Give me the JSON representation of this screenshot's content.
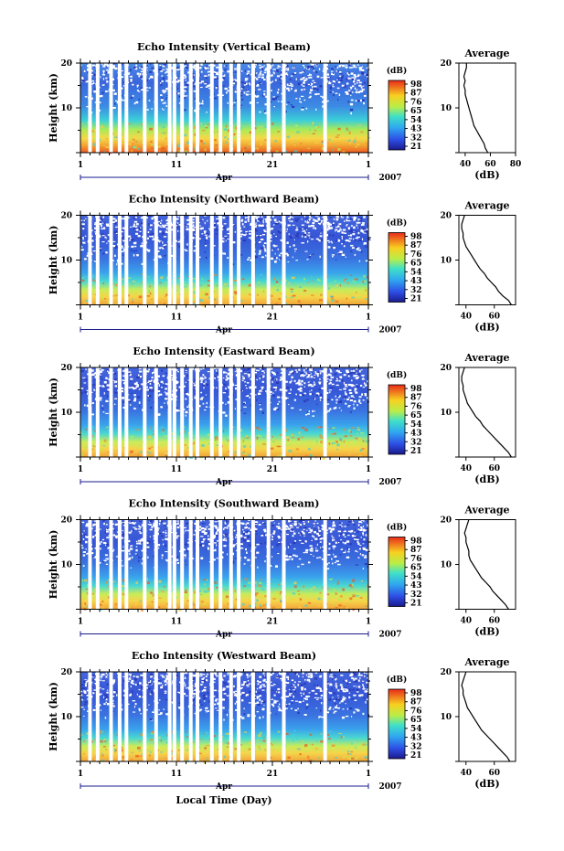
{
  "figure": {
    "xlabel": "Local Time (Day)"
  },
  "chart_data": [
    {
      "type": "heatmap",
      "title": "Echo Intensity (Vertical Beam)",
      "ylabel": "Height (km)",
      "y_ticks": [
        "10",
        "20"
      ],
      "x_ticks": [
        "1",
        "11",
        "21",
        "1"
      ],
      "month_label": "Apr",
      "year_label": "2007",
      "colorbar_unit": "(dB)",
      "colorbar_ticks": [
        "98",
        "87",
        "76",
        "65",
        "54",
        "43",
        "32",
        "21"
      ],
      "ylim": [
        0,
        20
      ],
      "gap_days": [
        1.8,
        2.6,
        4.0,
        4.9,
        5.6,
        7.5,
        8.7,
        10.1,
        10.6,
        11.4,
        12.3,
        13.0,
        14.5,
        15.4,
        16.5,
        17.3,
        18.8,
        20.4,
        22.0,
        26.3
      ],
      "average": {
        "title": "Average",
        "xlabel": "(dB)",
        "x_ticks": [
          "40",
          "60",
          "80"
        ],
        "profile_dB": [
          58,
          56,
          55,
          53,
          51,
          49,
          47,
          46,
          45,
          44,
          43,
          42,
          41,
          40,
          40,
          39,
          40,
          39,
          40,
          41,
          41
        ]
      }
    },
    {
      "type": "heatmap",
      "title": "Echo Intensity (Northward Beam)",
      "ylabel": "Height (km)",
      "y_ticks": [
        "10",
        "20"
      ],
      "x_ticks": [
        "1",
        "11",
        "21",
        "1"
      ],
      "month_label": "Apr",
      "year_label": "2007",
      "colorbar_unit": "(dB)",
      "colorbar_ticks": [
        "98",
        "87",
        "76",
        "65",
        "54",
        "43",
        "32",
        "21"
      ],
      "ylim": [
        0,
        20
      ],
      "gap_days": [
        1.8,
        2.6,
        4.0,
        4.9,
        5.6,
        7.5,
        8.7,
        10.1,
        10.6,
        11.4,
        12.3,
        13.0,
        14.5,
        15.4,
        16.5,
        17.3,
        18.8,
        20.4,
        22.0,
        26.3
      ],
      "average": {
        "title": "Average",
        "xlabel": "(dB)",
        "x_ticks": [
          "40",
          "60"
        ],
        "profile_dB": [
          72,
          70,
          66,
          63,
          61,
          58,
          55,
          53,
          50,
          48,
          46,
          44,
          42,
          40,
          39,
          38,
          38,
          37,
          37,
          38,
          39
        ]
      }
    },
    {
      "type": "heatmap",
      "title": "Echo Intensity (Eastward Beam)",
      "ylabel": "Height (km)",
      "y_ticks": [
        "10",
        "20"
      ],
      "x_ticks": [
        "1",
        "11",
        "21",
        "1"
      ],
      "month_label": "Apr",
      "year_label": "2007",
      "colorbar_unit": "(dB)",
      "colorbar_ticks": [
        "98",
        "87",
        "76",
        "65",
        "54",
        "43",
        "32",
        "21"
      ],
      "ylim": [
        0,
        20
      ],
      "gap_days": [
        1.8,
        2.6,
        4.0,
        4.9,
        5.6,
        7.5,
        8.7,
        10.1,
        10.6,
        11.4,
        12.3,
        13.0,
        14.5,
        15.4,
        16.5,
        17.3,
        18.8,
        20.4,
        22.0,
        26.3
      ],
      "average": {
        "title": "Average",
        "xlabel": "(dB)",
        "x_ticks": [
          "40",
          "60"
        ],
        "profile_dB": [
          72,
          70,
          67,
          64,
          61,
          58,
          55,
          52,
          50,
          47,
          45,
          43,
          41,
          40,
          39,
          38,
          38,
          37,
          37,
          38,
          39
        ]
      }
    },
    {
      "type": "heatmap",
      "title": "Echo Intensity (Southward Beam)",
      "ylabel": "Height (km)",
      "y_ticks": [
        "10",
        "20"
      ],
      "x_ticks": [
        "1",
        "11",
        "21",
        "1"
      ],
      "month_label": "Apr",
      "year_label": "2007",
      "colorbar_unit": "(dB)",
      "colorbar_ticks": [
        "98",
        "87",
        "76",
        "65",
        "54",
        "43",
        "32",
        "21"
      ],
      "ylim": [
        0,
        20
      ],
      "gap_days": [
        1.8,
        2.6,
        4.0,
        4.9,
        5.6,
        7.5,
        8.7,
        10.1,
        10.6,
        11.4,
        12.3,
        13.0,
        14.5,
        15.4,
        16.5,
        17.3,
        18.8,
        20.4,
        22.0,
        26.3
      ],
      "average": {
        "title": "Average",
        "xlabel": "(dB)",
        "x_ticks": [
          "40",
          "60"
        ],
        "profile_dB": [
          70,
          68,
          65,
          62,
          59,
          57,
          54,
          51,
          49,
          47,
          45,
          43,
          42,
          42,
          41,
          40,
          40,
          39,
          40,
          41,
          42
        ]
      }
    },
    {
      "type": "heatmap",
      "title": "Echo Intensity (Westward Beam)",
      "ylabel": "Height (km)",
      "y_ticks": [
        "10",
        "20"
      ],
      "x_ticks": [
        "1",
        "11",
        "21",
        "1"
      ],
      "month_label": "Apr",
      "year_label": "2007",
      "colorbar_unit": "(dB)",
      "colorbar_ticks": [
        "98",
        "87",
        "76",
        "65",
        "54",
        "43",
        "32",
        "21"
      ],
      "ylim": [
        0,
        20
      ],
      "gap_days": [
        1.8,
        2.6,
        4.0,
        4.9,
        5.6,
        7.5,
        8.7,
        10.1,
        10.6,
        11.4,
        12.3,
        13.0,
        14.5,
        15.4,
        16.5,
        17.3,
        18.8,
        20.4,
        22.0,
        26.3
      ],
      "average": {
        "title": "Average",
        "xlabel": "(dB)",
        "x_ticks": [
          "40",
          "60"
        ],
        "profile_dB": [
          71,
          69,
          66,
          63,
          60,
          57,
          54,
          51,
          49,
          47,
          45,
          43,
          41,
          40,
          39,
          38,
          38,
          37,
          38,
          39,
          40
        ]
      }
    }
  ]
}
